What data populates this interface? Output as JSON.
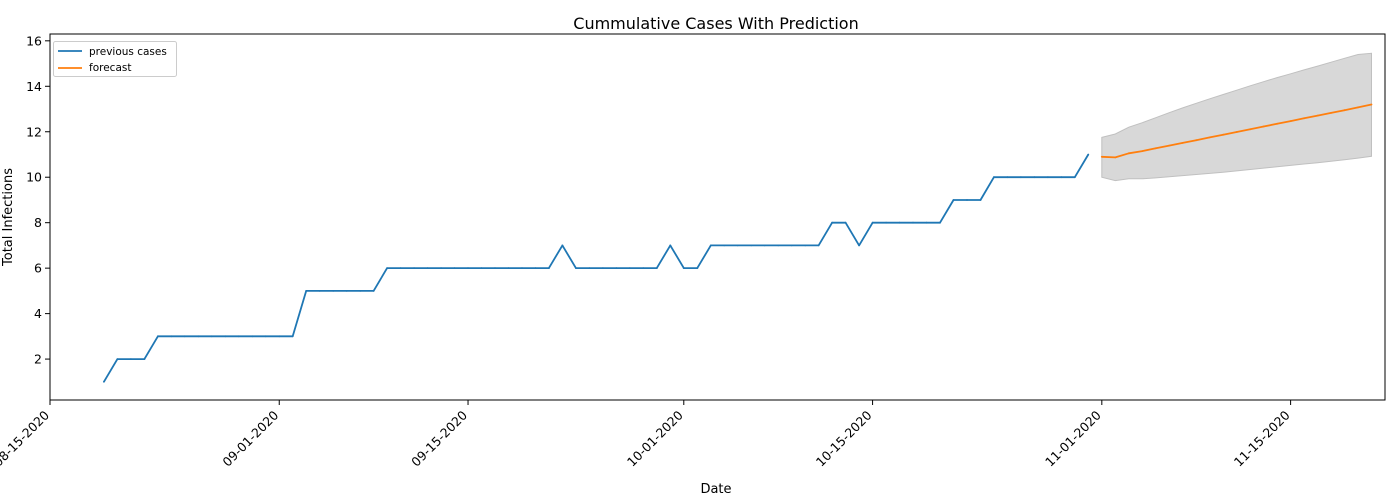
{
  "chart_data": {
    "type": "line",
    "title": "Cummulative Cases With Prediction",
    "xlabel": "Date",
    "ylabel": "Total Infections",
    "xlim": [
      "2020-08-15",
      "2020-11-22"
    ],
    "ylim": [
      0.2,
      16.3
    ],
    "grid": false,
    "legend_position": "top-left",
    "x_tick_labels": [
      "08-15-2020",
      "09-01-2020",
      "09-15-2020",
      "10-01-2020",
      "10-15-2020",
      "11-01-2020",
      "11-15-2020"
    ],
    "x_tick_dates": [
      "2020-08-15",
      "2020-09-01",
      "2020-09-15",
      "2020-10-01",
      "2020-10-15",
      "2020-11-01",
      "2020-11-15"
    ],
    "y_ticks": [
      2,
      4,
      6,
      8,
      10,
      12,
      14,
      16
    ],
    "series": [
      {
        "name": "previous cases",
        "color": "#1f77b4",
        "points": [
          [
            "2020-08-19",
            1
          ],
          [
            "2020-08-20",
            2
          ],
          [
            "2020-08-21",
            2
          ],
          [
            "2020-08-22",
            2
          ],
          [
            "2020-08-23",
            3
          ],
          [
            "2020-08-24",
            3
          ],
          [
            "2020-08-25",
            3
          ],
          [
            "2020-08-26",
            3
          ],
          [
            "2020-08-27",
            3
          ],
          [
            "2020-08-28",
            3
          ],
          [
            "2020-08-29",
            3
          ],
          [
            "2020-08-30",
            3
          ],
          [
            "2020-08-31",
            3
          ],
          [
            "2020-09-01",
            3
          ],
          [
            "2020-09-02",
            3
          ],
          [
            "2020-09-03",
            5
          ],
          [
            "2020-09-04",
            5
          ],
          [
            "2020-09-05",
            5
          ],
          [
            "2020-09-06",
            5
          ],
          [
            "2020-09-07",
            5
          ],
          [
            "2020-09-08",
            5
          ],
          [
            "2020-09-09",
            6
          ],
          [
            "2020-09-10",
            6
          ],
          [
            "2020-09-11",
            6
          ],
          [
            "2020-09-12",
            6
          ],
          [
            "2020-09-13",
            6
          ],
          [
            "2020-09-14",
            6
          ],
          [
            "2020-09-15",
            6
          ],
          [
            "2020-09-16",
            6
          ],
          [
            "2020-09-17",
            6
          ],
          [
            "2020-09-18",
            6
          ],
          [
            "2020-09-19",
            6
          ],
          [
            "2020-09-20",
            6
          ],
          [
            "2020-09-21",
            6
          ],
          [
            "2020-09-22",
            7
          ],
          [
            "2020-09-23",
            6
          ],
          [
            "2020-09-24",
            6
          ],
          [
            "2020-09-25",
            6
          ],
          [
            "2020-09-26",
            6
          ],
          [
            "2020-09-27",
            6
          ],
          [
            "2020-09-28",
            6
          ],
          [
            "2020-09-29",
            6
          ],
          [
            "2020-09-30",
            7
          ],
          [
            "2020-10-01",
            6
          ],
          [
            "2020-10-02",
            6
          ],
          [
            "2020-10-03",
            7
          ],
          [
            "2020-10-04",
            7
          ],
          [
            "2020-10-05",
            7
          ],
          [
            "2020-10-06",
            7
          ],
          [
            "2020-10-07",
            7
          ],
          [
            "2020-10-08",
            7
          ],
          [
            "2020-10-09",
            7
          ],
          [
            "2020-10-10",
            7
          ],
          [
            "2020-10-11",
            7
          ],
          [
            "2020-10-12",
            8
          ],
          [
            "2020-10-13",
            8
          ],
          [
            "2020-10-14",
            7
          ],
          [
            "2020-10-15",
            8
          ],
          [
            "2020-10-16",
            8
          ],
          [
            "2020-10-17",
            8
          ],
          [
            "2020-10-18",
            8
          ],
          [
            "2020-10-19",
            8
          ],
          [
            "2020-10-20",
            8
          ],
          [
            "2020-10-21",
            9
          ],
          [
            "2020-10-22",
            9
          ],
          [
            "2020-10-23",
            9
          ],
          [
            "2020-10-24",
            10
          ],
          [
            "2020-10-25",
            10
          ],
          [
            "2020-10-26",
            10
          ],
          [
            "2020-10-27",
            10
          ],
          [
            "2020-10-28",
            10
          ],
          [
            "2020-10-29",
            10
          ],
          [
            "2020-10-30",
            10
          ],
          [
            "2020-10-31",
            11
          ]
        ]
      },
      {
        "name": "forecast",
        "color": "#ff7f0e",
        "points": [
          [
            "2020-11-01",
            10.9
          ],
          [
            "2020-11-02",
            10.87
          ],
          [
            "2020-11-03",
            11.05
          ],
          [
            "2020-11-04",
            11.15
          ],
          [
            "2020-11-05",
            11.27
          ],
          [
            "2020-11-06",
            11.39
          ],
          [
            "2020-11-07",
            11.51
          ],
          [
            "2020-11-08",
            11.63
          ],
          [
            "2020-11-09",
            11.75
          ],
          [
            "2020-11-10",
            11.87
          ],
          [
            "2020-11-11",
            11.99
          ],
          [
            "2020-11-12",
            12.11
          ],
          [
            "2020-11-13",
            12.23
          ],
          [
            "2020-11-14",
            12.35
          ],
          [
            "2020-11-15",
            12.47
          ],
          [
            "2020-11-16",
            12.59
          ],
          [
            "2020-11-17",
            12.71
          ],
          [
            "2020-11-18",
            12.83
          ],
          [
            "2020-11-19",
            12.95
          ],
          [
            "2020-11-20",
            13.07
          ],
          [
            "2020-11-21",
            13.2
          ]
        ],
        "interval": {
          "color": "#d8d8d8",
          "upper": [
            11.75,
            11.9,
            12.2,
            12.4,
            12.62,
            12.84,
            13.05,
            13.25,
            13.45,
            13.64,
            13.83,
            14.02,
            14.2,
            14.38,
            14.55,
            14.72,
            14.89,
            15.06,
            15.23,
            15.4,
            15.45
          ],
          "lower": [
            10.0,
            9.85,
            9.93,
            9.93,
            9.97,
            10.02,
            10.07,
            10.12,
            10.17,
            10.22,
            10.28,
            10.34,
            10.4,
            10.46,
            10.52,
            10.58,
            10.64,
            10.7,
            10.77,
            10.84,
            10.92
          ]
        }
      }
    ]
  }
}
